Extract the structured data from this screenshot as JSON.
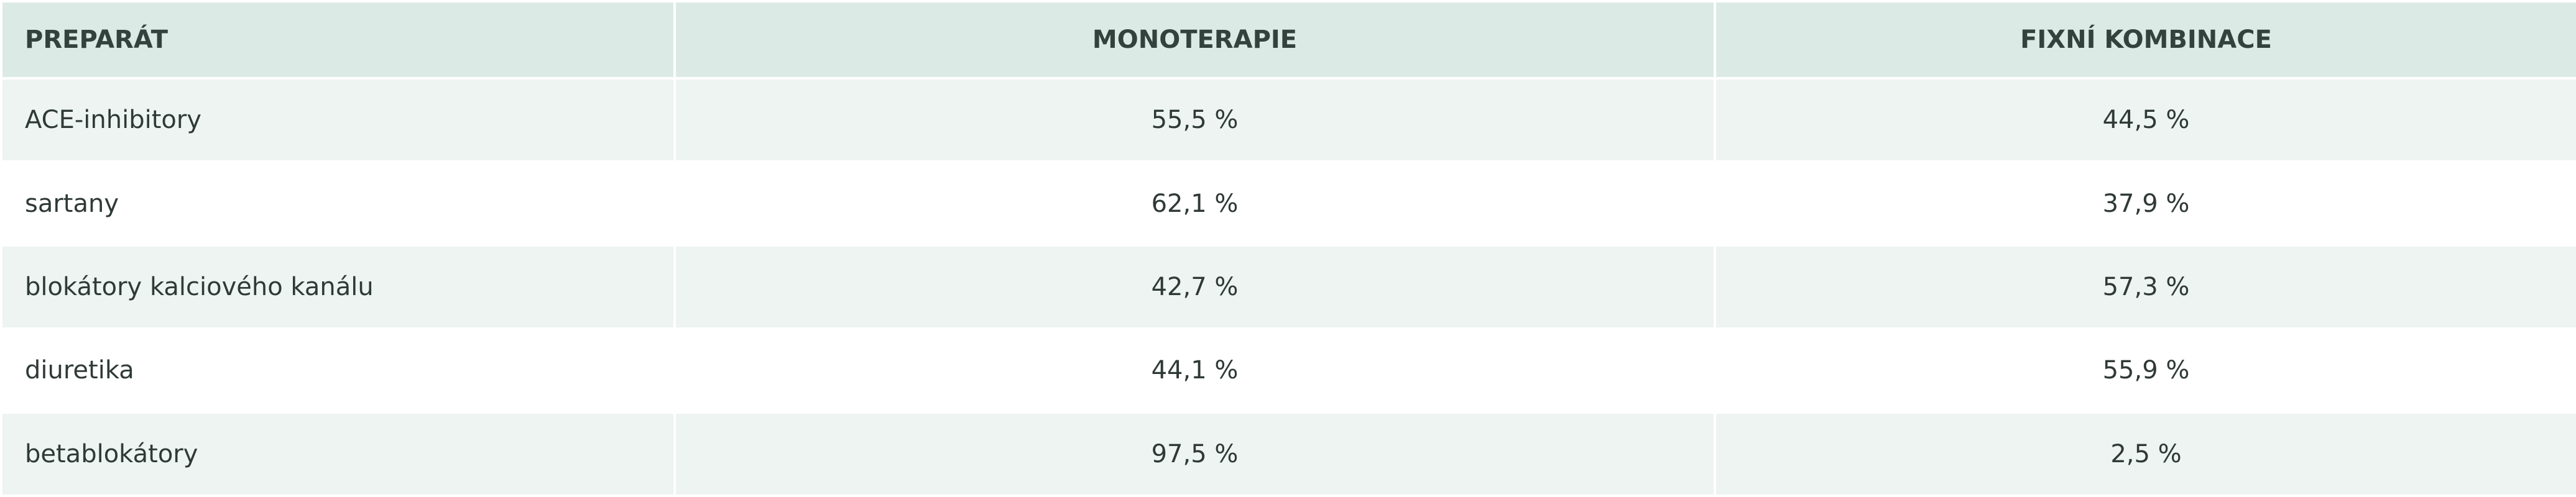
{
  "table": {
    "headers": [
      "PREPARÁT",
      "MONOTERAPIE",
      "FIXNÍ KOMBINACE"
    ],
    "rows": [
      [
        "ACE-inhibitory",
        "55,5 %",
        "44,5 %"
      ],
      [
        "sartany",
        "62,1 %",
        "37,9 %"
      ],
      [
        "blokátory kalciového kanálu",
        "42,7 %",
        "57,3 %"
      ],
      [
        "diuretika",
        "44,1 %",
        "55,9 %"
      ],
      [
        "betablokátory",
        "97,5 %",
        "2,5 %"
      ]
    ]
  }
}
